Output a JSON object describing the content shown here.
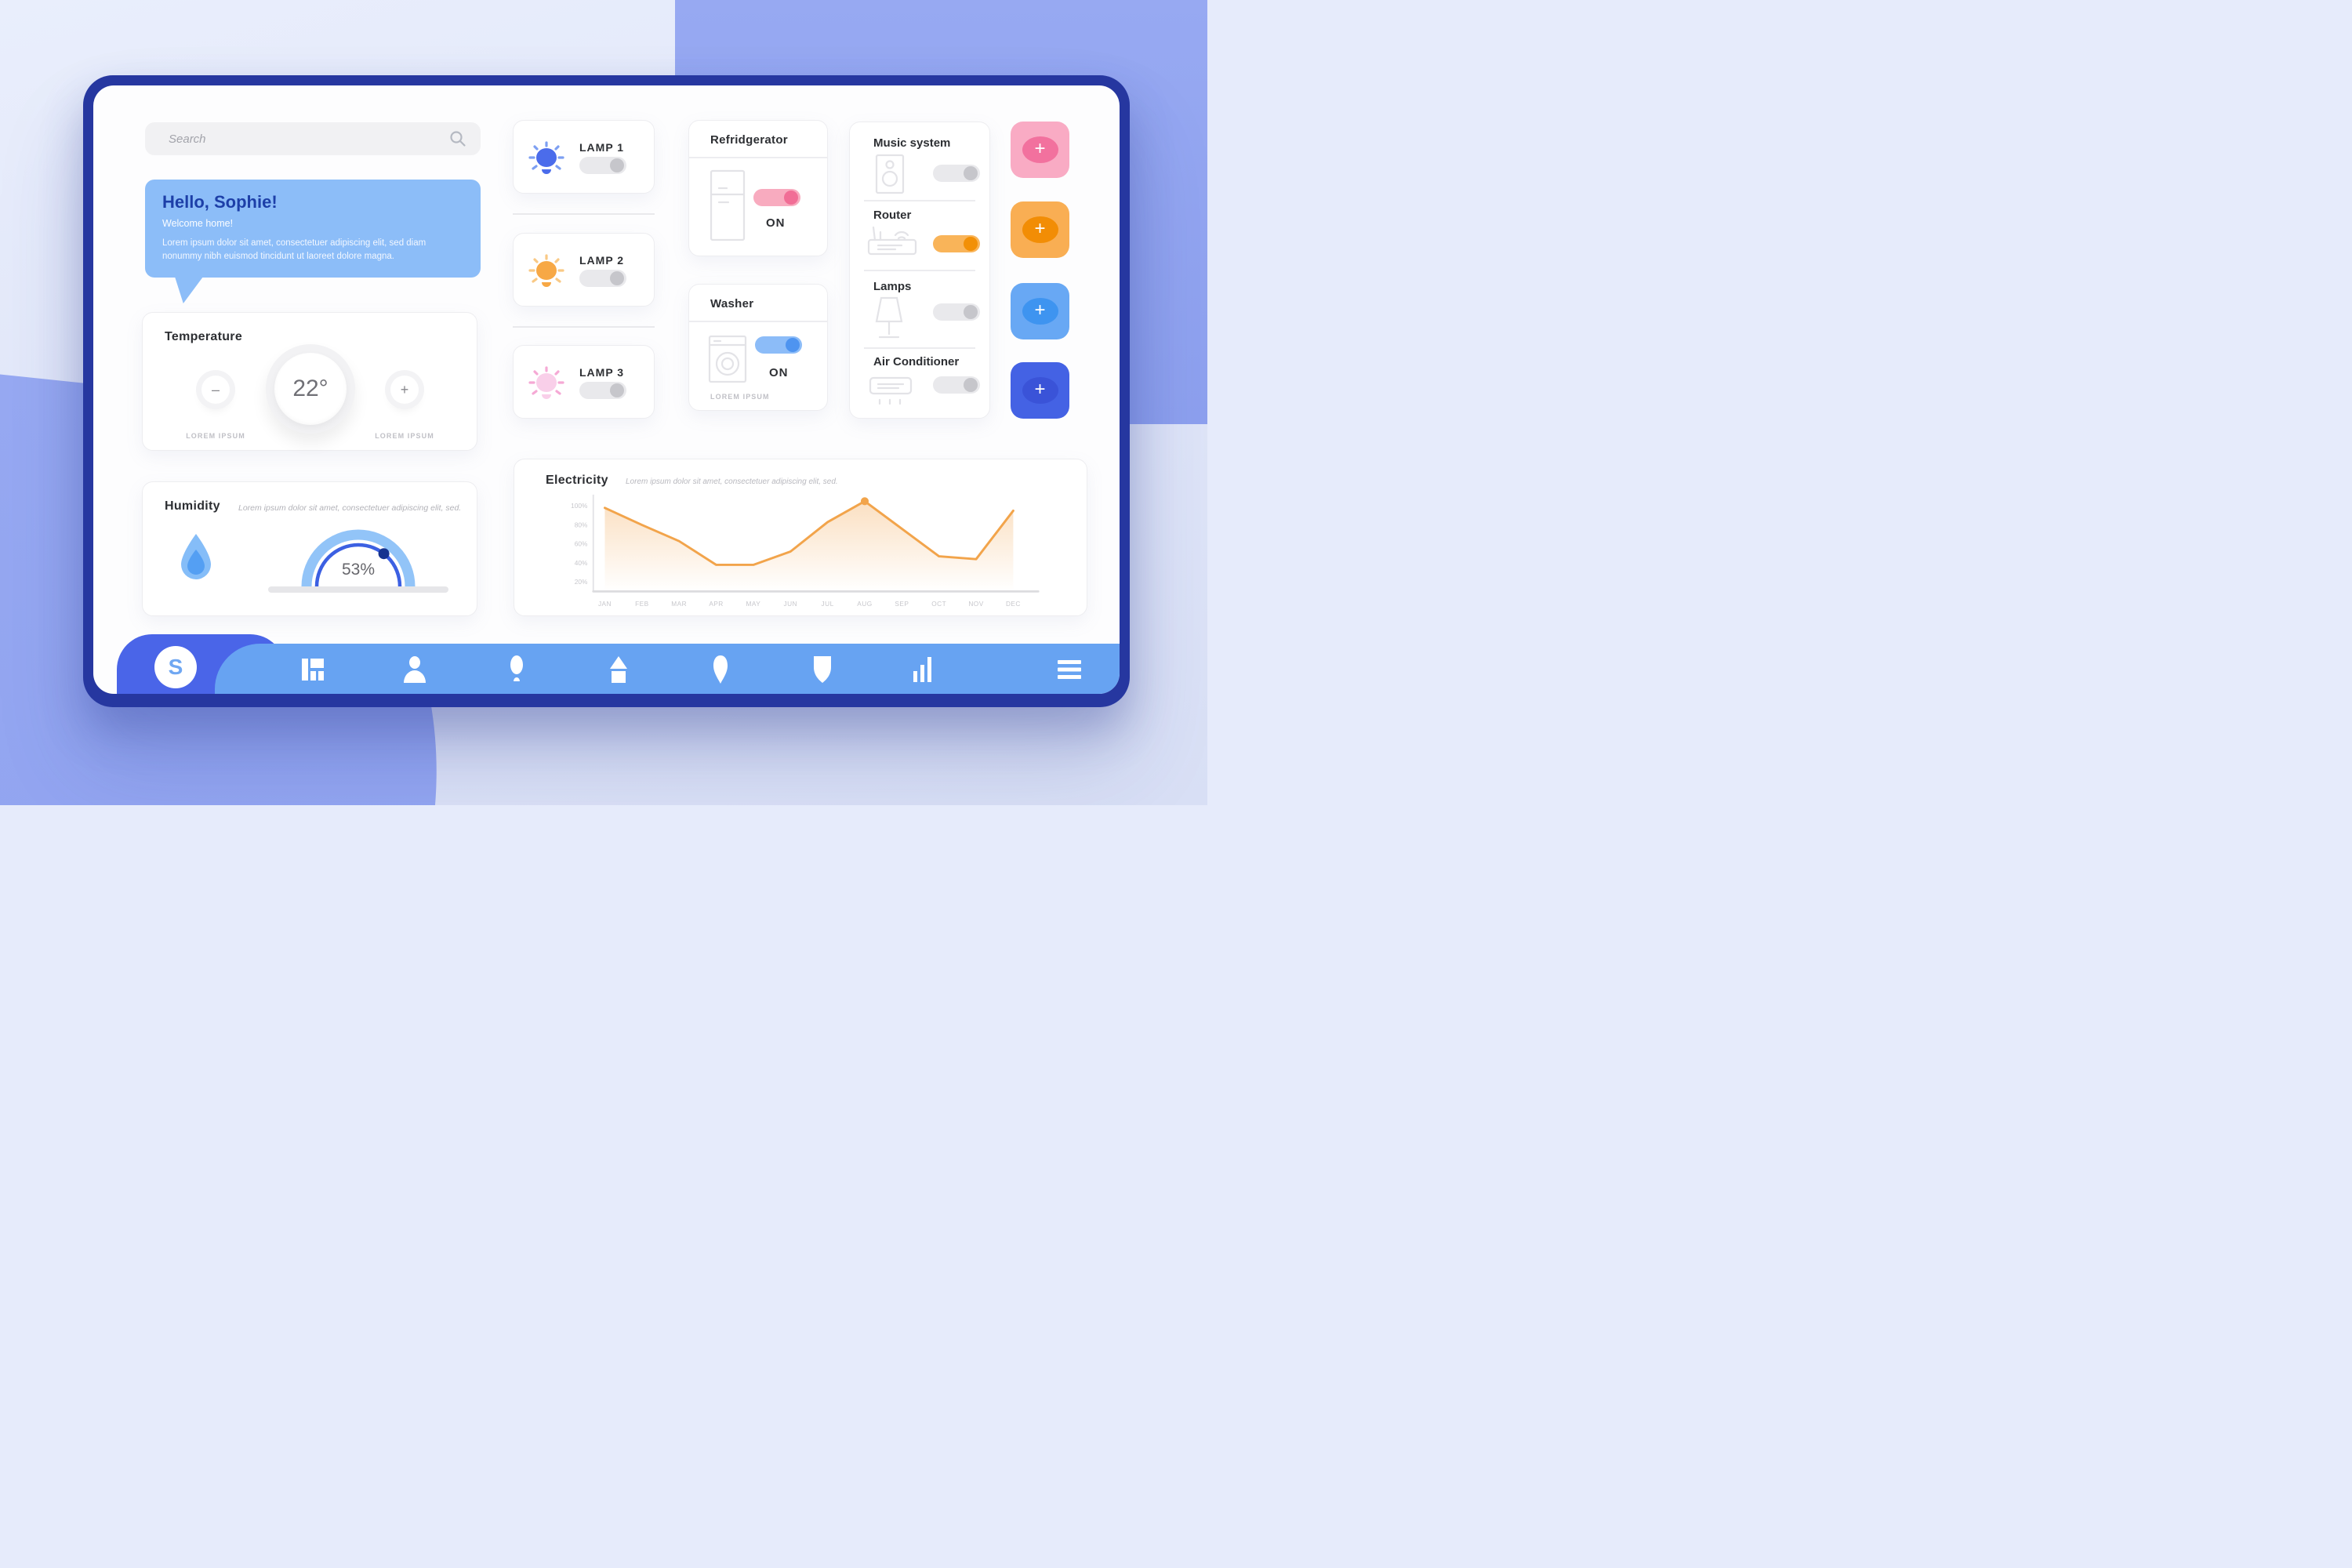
{
  "theme": {
    "shape": "#97a9f2",
    "frame": "#2637a0",
    "nav_light": "#67a3f2",
    "nav_dark": "#4a65e8",
    "card_border": "#ededf0",
    "welcome_bg": "#8cbdf8",
    "welcome_title": "#1d3fa8",
    "toggle_gray_track": "#e9e9ec",
    "toggle_gray_knob": "#c6c6cb",
    "toggle_pink_track": "#f8abbf",
    "toggle_pink_knob": "#f16e96",
    "toggle_blue_track": "#8cbcf8",
    "toggle_blue_knob": "#4e94f0",
    "toggle_orange_track": "#f9b459",
    "toggle_orange_knob": "#f29007",
    "gauge_light": "#92c4f8",
    "gauge_dark": "#3c60e2",
    "gauge_knob": "#16338f",
    "drop_outer": "#85bdf8",
    "drop_inner": "#549ff3"
  },
  "search": {
    "placeholder": "Search"
  },
  "welcome": {
    "title": "Hello, Sophie!",
    "subtitle": "Welcome home!",
    "body": "Lorem ipsum dolor sit amet, consectetuer adipiscing elit, sed diam nonummy nibh euismod tincidunt ut laoreet dolore magna."
  },
  "temperature": {
    "title": "Temperature",
    "value": "22°",
    "minus": "–",
    "plus": "+",
    "minus_label": "LOREM IPSUM",
    "plus_label": "LOREM IPSUM"
  },
  "humidity": {
    "title": "Humidity",
    "subtitle": "Lorem ipsum dolor sit amet, consectetuer adipiscing elit, sed.",
    "value": "53%",
    "percent": 53
  },
  "lamps": [
    {
      "label": "LAMP 1",
      "bulb": "#4b6ceb",
      "ray": "#7d9ff2",
      "state": "off"
    },
    {
      "label": "LAMP 2",
      "bulb": "#f7a845",
      "ray": "#f9c985",
      "state": "off"
    },
    {
      "label": "LAMP 3",
      "bulb": "#f9cfe9",
      "ray": "#f5a9d5",
      "state": "off"
    }
  ],
  "refrigerator": {
    "title": "Refridgerator",
    "status": "ON",
    "toggle_color": "pink"
  },
  "washer": {
    "title": "Washer",
    "status": "ON",
    "toggle_color": "blue",
    "footnote": "LOREM IPSUM"
  },
  "devices": [
    {
      "label": "Music system",
      "state": "off",
      "toggle_color": "gray"
    },
    {
      "label": "Router",
      "state": "on",
      "toggle_color": "orange"
    },
    {
      "label": "Lamps",
      "state": "off",
      "toggle_color": "gray"
    },
    {
      "label": "Air Conditioner",
      "state": "off",
      "toggle_color": "gray"
    }
  ],
  "add_buttons": [
    {
      "name": "add-pink",
      "bg": "#f9abc4",
      "fg": "#f2719e",
      "glyph": "+"
    },
    {
      "name": "add-orange",
      "bg": "#f9ae53",
      "fg": "#f28d05",
      "glyph": "+"
    },
    {
      "name": "add-light-blue",
      "bg": "#68a8f4",
      "fg": "#3e94f0",
      "glyph": "+"
    },
    {
      "name": "add-blue",
      "bg": "#4462e4",
      "fg": "#3a53d8",
      "glyph": "+"
    }
  ],
  "chart_data": {
    "type": "area",
    "title": "Electricity",
    "subtitle": "Lorem ipsum dolor sit amet, consectetuer adipiscing elit, sed.",
    "x": [
      "JAN",
      "FEB",
      "MAR",
      "APR",
      "MAY",
      "JUN",
      "JUL",
      "AUG",
      "SEP",
      "OCT",
      "NOV",
      "DEC"
    ],
    "values": [
      98,
      80,
      63,
      38,
      38,
      52,
      83,
      105,
      76,
      47,
      44,
      95
    ],
    "y_ticks": [
      100,
      80,
      60,
      40,
      20
    ],
    "y_tick_labels": [
      "100%",
      "80%",
      "60%",
      "40%",
      "20%"
    ],
    "ylim": [
      10,
      115
    ],
    "xlabel": "",
    "ylabel": "",
    "grid": false,
    "legend_position": "none",
    "line_color": "#f2a44b",
    "fill_from": "#f7c690",
    "marker": {
      "month": "AUG",
      "value": 105
    }
  },
  "nav": {
    "logo": "S",
    "items": [
      {
        "name": "dashboard"
      },
      {
        "name": "profile"
      },
      {
        "name": "lights"
      },
      {
        "name": "home"
      },
      {
        "name": "location"
      },
      {
        "name": "security"
      },
      {
        "name": "stats"
      },
      {
        "name": "menu"
      }
    ]
  }
}
